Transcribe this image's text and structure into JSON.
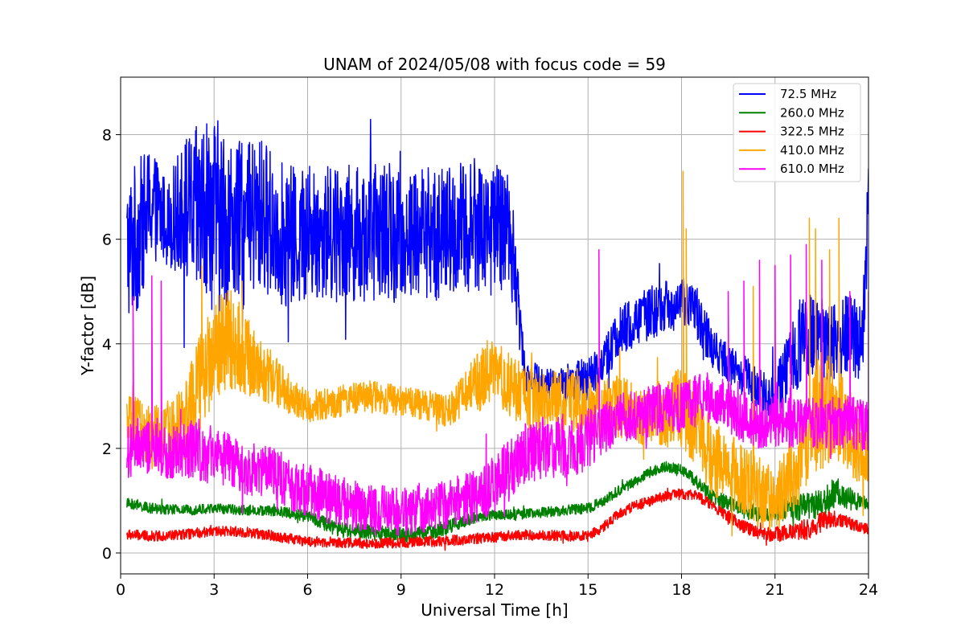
{
  "chart_data": {
    "type": "line",
    "title": "UNAM of 2024/05/08 with focus code = 59",
    "xlabel": "Universal Time [h]",
    "ylabel": "Y-factor [dB]",
    "xlim": [
      0,
      24
    ],
    "ylim": [
      -0.4,
      9.1
    ],
    "xticks": [
      0,
      3,
      6,
      9,
      12,
      15,
      18,
      21,
      24
    ],
    "xtick_labels": [
      "0",
      "3",
      "6",
      "9",
      "12",
      "15",
      "18",
      "21",
      "24"
    ],
    "yticks": [
      0,
      2,
      4,
      6,
      8
    ],
    "ytick_labels": [
      "0",
      "2",
      "4",
      "6",
      "8"
    ],
    "grid": true,
    "legend_position": "top-right",
    "series": [
      {
        "name": " 72.5 MHz",
        "color": "#0000ff",
        "x": [
          0.2,
          0.5,
          1.0,
          1.5,
          2.0,
          2.5,
          3.0,
          3.5,
          4.0,
          4.5,
          5.0,
          5.5,
          6.0,
          6.5,
          7.0,
          7.5,
          8.0,
          8.5,
          9.0,
          9.5,
          10.0,
          10.5,
          11.0,
          11.5,
          12.0,
          12.5,
          12.8,
          13.0,
          13.5,
          14.0,
          14.5,
          15.0,
          15.5,
          16.0,
          16.5,
          17.0,
          17.5,
          18.0,
          18.5,
          19.0,
          19.5,
          20.0,
          20.5,
          21.0,
          21.5,
          22.0,
          22.5,
          23.0,
          23.5,
          23.8,
          24.0
        ],
        "values": [
          5.8,
          6.0,
          6.7,
          6.3,
          6.6,
          6.4,
          6.5,
          6.3,
          6.2,
          6.5,
          6.2,
          6.0,
          6.1,
          6.1,
          6.2,
          6.1,
          6.1,
          6.2,
          6.0,
          6.2,
          6.1,
          6.1,
          6.2,
          6.3,
          6.2,
          6.2,
          4.5,
          3.4,
          3.3,
          3.2,
          3.3,
          3.3,
          3.7,
          4.2,
          4.4,
          4.6,
          4.7,
          4.8,
          4.6,
          3.9,
          3.6,
          3.4,
          3.1,
          3.0,
          3.6,
          4.3,
          4.1,
          4.0,
          4.2,
          4.0,
          6.8
        ],
        "spread": [
          1.4,
          1.5,
          1.1,
          0.8,
          1.3,
          1.8,
          1.9,
          1.7,
          1.6,
          1.5,
          1.4,
          1.4,
          1.3,
          1.3,
          1.3,
          1.3,
          1.3,
          1.3,
          1.3,
          1.3,
          1.3,
          1.3,
          1.3,
          1.3,
          1.3,
          1.2,
          0.6,
          0.3,
          0.3,
          0.3,
          0.4,
          0.4,
          0.4,
          0.5,
          0.5,
          0.5,
          0.5,
          0.5,
          0.5,
          0.4,
          0.4,
          0.4,
          0.4,
          0.5,
          0.7,
          0.9,
          0.8,
          0.8,
          0.8,
          0.8,
          1.2
        ]
      },
      {
        "name": "260.0 MHz",
        "color": "#008000",
        "x": [
          0.2,
          1.0,
          2.0,
          3.0,
          4.0,
          5.0,
          6.0,
          7.0,
          8.0,
          9.0,
          10.0,
          11.0,
          11.5,
          12.0,
          13.0,
          14.0,
          15.0,
          15.5,
          16.0,
          16.5,
          17.0,
          17.5,
          18.0,
          18.5,
          19.0,
          19.5,
          20.0,
          20.5,
          21.0,
          21.5,
          22.0,
          22.5,
          23.0,
          23.5,
          24.0
        ],
        "values": [
          0.95,
          0.85,
          0.82,
          0.85,
          0.82,
          0.8,
          0.7,
          0.45,
          0.4,
          0.35,
          0.4,
          0.6,
          0.7,
          0.72,
          0.75,
          0.8,
          0.85,
          1.0,
          1.2,
          1.35,
          1.55,
          1.65,
          1.6,
          1.35,
          1.05,
          0.95,
          0.8,
          0.75,
          0.8,
          0.85,
          0.9,
          0.9,
          1.2,
          1.0,
          0.95
        ],
        "spread": [
          0.1,
          0.1,
          0.1,
          0.1,
          0.1,
          0.1,
          0.12,
          0.15,
          0.15,
          0.15,
          0.15,
          0.12,
          0.1,
          0.1,
          0.1,
          0.1,
          0.1,
          0.1,
          0.1,
          0.1,
          0.1,
          0.1,
          0.1,
          0.15,
          0.15,
          0.15,
          0.15,
          0.15,
          0.2,
          0.25,
          0.25,
          0.3,
          0.3,
          0.2,
          0.1
        ]
      },
      {
        "name": "322.5 MHz",
        "color": "#ff0000",
        "x": [
          0.2,
          1.0,
          2.0,
          3.0,
          4.0,
          5.0,
          6.0,
          7.0,
          8.0,
          9.0,
          10.0,
          11.0,
          12.0,
          13.0,
          14.0,
          15.0,
          15.5,
          16.0,
          16.5,
          17.0,
          17.5,
          18.0,
          18.5,
          19.0,
          19.5,
          20.0,
          20.5,
          21.0,
          21.5,
          22.0,
          22.5,
          23.0,
          23.5,
          24.0
        ],
        "values": [
          0.35,
          0.32,
          0.35,
          0.42,
          0.4,
          0.32,
          0.22,
          0.2,
          0.18,
          0.2,
          0.22,
          0.25,
          0.3,
          0.35,
          0.33,
          0.32,
          0.5,
          0.75,
          0.9,
          1.0,
          1.1,
          1.12,
          1.1,
          0.9,
          0.7,
          0.5,
          0.38,
          0.35,
          0.4,
          0.45,
          0.6,
          0.65,
          0.55,
          0.45
        ],
        "spread": [
          0.1,
          0.1,
          0.1,
          0.1,
          0.1,
          0.1,
          0.1,
          0.1,
          0.1,
          0.1,
          0.1,
          0.1,
          0.1,
          0.1,
          0.1,
          0.1,
          0.1,
          0.1,
          0.1,
          0.1,
          0.1,
          0.1,
          0.1,
          0.1,
          0.12,
          0.12,
          0.12,
          0.15,
          0.15,
          0.2,
          0.2,
          0.15,
          0.12,
          0.1
        ]
      },
      {
        "name": "410.0 MHz",
        "color": "#ffa500",
        "x": [
          0.2,
          0.5,
          1.0,
          1.5,
          2.0,
          2.5,
          3.0,
          3.5,
          4.0,
          4.5,
          5.0,
          5.5,
          6.0,
          7.0,
          8.0,
          9.0,
          10.0,
          10.5,
          11.0,
          11.5,
          12.0,
          12.5,
          13.0,
          13.5,
          14.0,
          15.0,
          16.0,
          17.0,
          18.0,
          18.5,
          19.0,
          19.5,
          20.0,
          20.5,
          21.0,
          21.5,
          22.0,
          22.5,
          23.0,
          23.5,
          24.0
        ],
        "values": [
          2.5,
          2.4,
          2.2,
          2.3,
          2.5,
          3.2,
          3.9,
          4.1,
          3.8,
          3.5,
          3.3,
          3.0,
          2.8,
          2.9,
          3.0,
          2.9,
          2.8,
          2.7,
          3.0,
          3.3,
          3.5,
          3.2,
          3.0,
          2.8,
          2.9,
          2.8,
          2.8,
          2.6,
          2.8,
          2.4,
          1.8,
          1.6,
          1.4,
          1.2,
          1.0,
          1.5,
          2.0,
          2.8,
          2.6,
          2.2,
          1.8
        ],
        "spread": [
          0.5,
          0.6,
          0.6,
          0.6,
          0.8,
          1.0,
          1.0,
          1.0,
          0.8,
          0.6,
          0.5,
          0.4,
          0.3,
          0.3,
          0.3,
          0.3,
          0.3,
          0.3,
          0.4,
          0.6,
          0.6,
          0.6,
          0.6,
          0.6,
          0.6,
          0.6,
          0.6,
          0.6,
          0.8,
          0.8,
          0.7,
          0.7,
          0.7,
          0.7,
          0.6,
          0.8,
          1.0,
          1.2,
          1.0,
          0.8,
          0.6
        ],
        "spikes": [
          {
            "x": 2.6,
            "y": 5.5
          },
          {
            "x": 3.9,
            "y": 5.2
          },
          {
            "x": 18.05,
            "y": 7.3
          },
          {
            "x": 18.15,
            "y": 6.2
          },
          {
            "x": 22.1,
            "y": 6.4
          },
          {
            "x": 22.3,
            "y": 6.2
          },
          {
            "x": 22.75,
            "y": 5.8
          },
          {
            "x": 23.05,
            "y": 6.4
          },
          {
            "x": 20.3,
            "y": 5.1
          }
        ]
      },
      {
        "name": "610.0 MHz",
        "color": "#ff00ff",
        "x": [
          0.2,
          0.5,
          1.0,
          1.5,
          2.0,
          2.5,
          3.0,
          3.5,
          4.0,
          4.5,
          5.0,
          5.5,
          6.0,
          6.5,
          7.0,
          7.5,
          8.0,
          8.5,
          9.0,
          9.5,
          10.0,
          10.5,
          11.0,
          11.5,
          12.0,
          12.5,
          13.0,
          13.5,
          14.0,
          14.5,
          15.0,
          15.5,
          16.0,
          16.5,
          17.0,
          17.5,
          18.0,
          18.5,
          19.0,
          19.5,
          20.0,
          20.5,
          21.0,
          21.5,
          22.0,
          22.5,
          23.0,
          23.5,
          24.0
        ],
        "values": [
          1.9,
          2.0,
          2.0,
          1.9,
          2.0,
          2.0,
          1.8,
          1.8,
          1.6,
          1.6,
          1.5,
          1.3,
          1.2,
          1.1,
          1.0,
          0.9,
          0.8,
          0.8,
          0.8,
          0.85,
          0.9,
          0.95,
          1.0,
          1.1,
          1.3,
          1.6,
          1.9,
          2.0,
          2.0,
          2.0,
          2.2,
          2.4,
          2.6,
          2.6,
          2.7,
          2.8,
          2.8,
          2.9,
          3.0,
          2.8,
          2.6,
          2.5,
          2.5,
          2.5,
          2.5,
          2.5,
          2.5,
          2.5,
          2.4
        ],
        "spread": [
          0.5,
          0.6,
          0.5,
          0.5,
          0.6,
          0.6,
          0.6,
          0.5,
          0.5,
          0.5,
          0.5,
          0.5,
          0.5,
          0.5,
          0.5,
          0.5,
          0.5,
          0.5,
          0.5,
          0.5,
          0.5,
          0.5,
          0.5,
          0.5,
          0.6,
          0.6,
          0.6,
          0.6,
          0.6,
          0.6,
          0.6,
          0.5,
          0.5,
          0.5,
          0.5,
          0.5,
          0.5,
          0.5,
          0.5,
          0.5,
          0.5,
          0.5,
          0.5,
          0.5,
          0.5,
          0.5,
          0.5,
          0.5,
          0.5
        ],
        "spikes": [
          {
            "x": 0.4,
            "y": 4.9
          },
          {
            "x": 1.0,
            "y": 5.3
          },
          {
            "x": 1.3,
            "y": 5.2
          },
          {
            "x": 15.35,
            "y": 5.8
          },
          {
            "x": 19.5,
            "y": 5.0
          },
          {
            "x": 20.0,
            "y": 5.2
          },
          {
            "x": 20.5,
            "y": 5.6
          },
          {
            "x": 21.0,
            "y": 5.5
          },
          {
            "x": 21.5,
            "y": 5.7
          },
          {
            "x": 22.0,
            "y": 5.9
          },
          {
            "x": 22.5,
            "y": 5.6
          },
          {
            "x": 23.4,
            "y": 5.0
          },
          {
            "x": 24.0,
            "y": 5.0
          }
        ]
      }
    ]
  }
}
